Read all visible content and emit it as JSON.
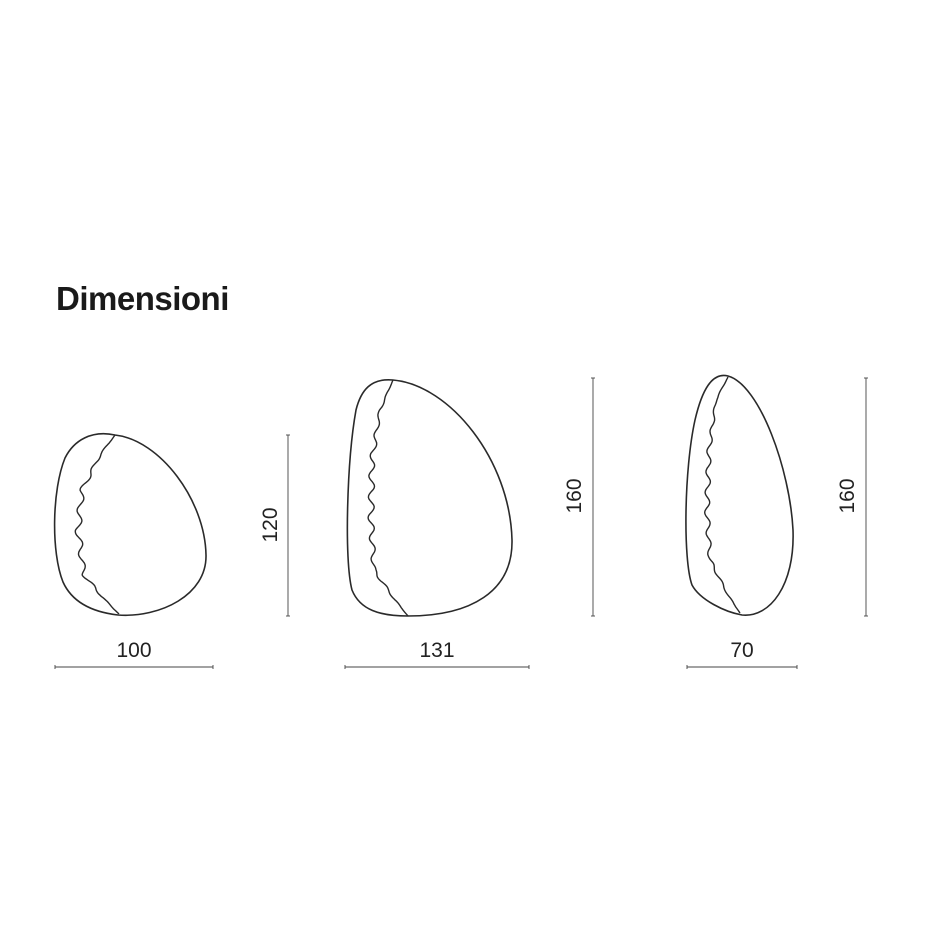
{
  "title": "Dimensioni",
  "items": [
    {
      "width_label": "100",
      "height_label": "120"
    },
    {
      "width_label": "131",
      "height_label": "160"
    },
    {
      "width_label": "70",
      "height_label": "160"
    }
  ]
}
